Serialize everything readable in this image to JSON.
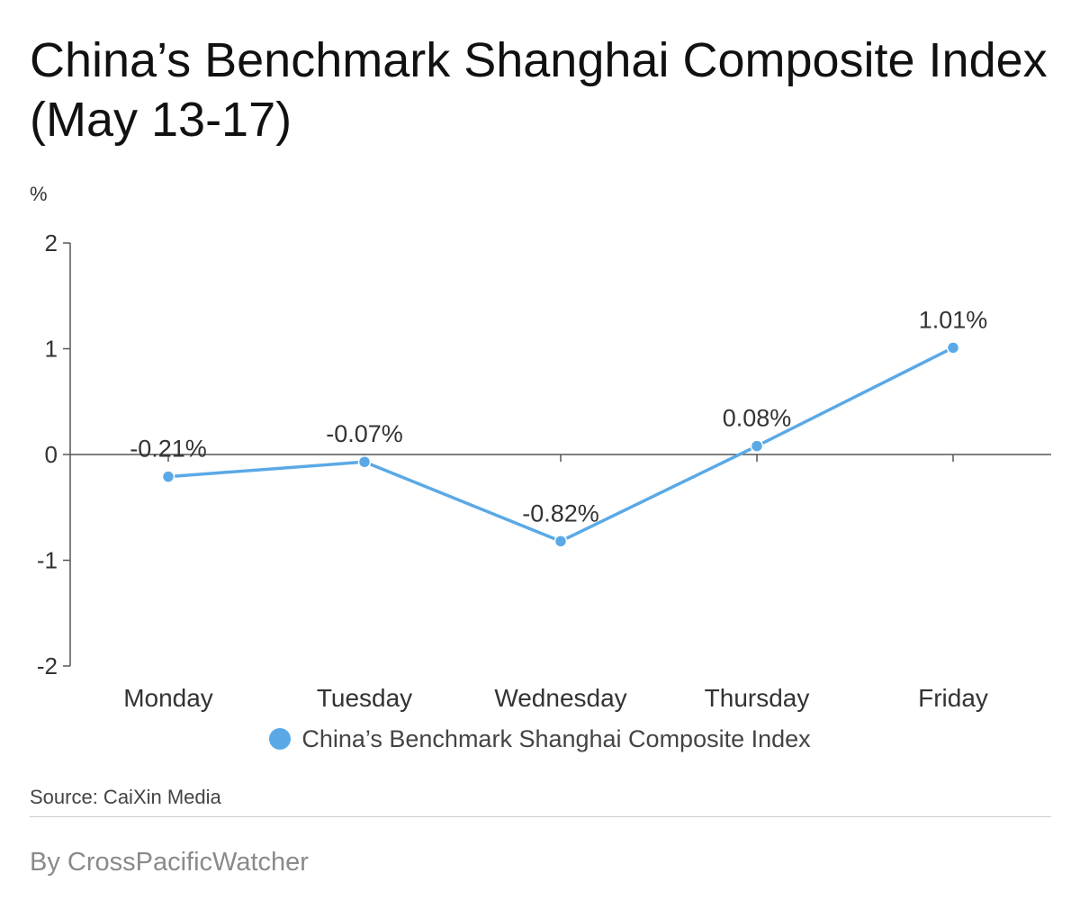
{
  "title": "China’s Benchmark Shanghai Composite Index (May 13-17)",
  "unit_label": "%",
  "source": "Source: CaiXin Media",
  "byline": "By CrossPacificWatcher",
  "colors": {
    "series": "#5aa9e6",
    "axis": "#555555",
    "text": "#333333"
  },
  "chart_data": {
    "type": "line",
    "title": "China’s Benchmark Shanghai Composite Index (May 13-17)",
    "ylabel": "%",
    "xlabel": "",
    "categories": [
      "Monday",
      "Tuesday",
      "Wednesday",
      "Thursday",
      "Friday"
    ],
    "ylim": [
      -2,
      2
    ],
    "yticks": [
      2,
      1,
      0,
      -1,
      -2
    ],
    "grid": false,
    "legend_position": "bottom",
    "series": [
      {
        "name": "China’s Benchmark Shanghai Composite Index",
        "values": [
          -0.21,
          -0.07,
          -0.82,
          0.08,
          1.01
        ],
        "labels": [
          "-0.21%",
          "-0.07%",
          "-0.82%",
          "0.08%",
          "1.01%"
        ]
      }
    ]
  }
}
